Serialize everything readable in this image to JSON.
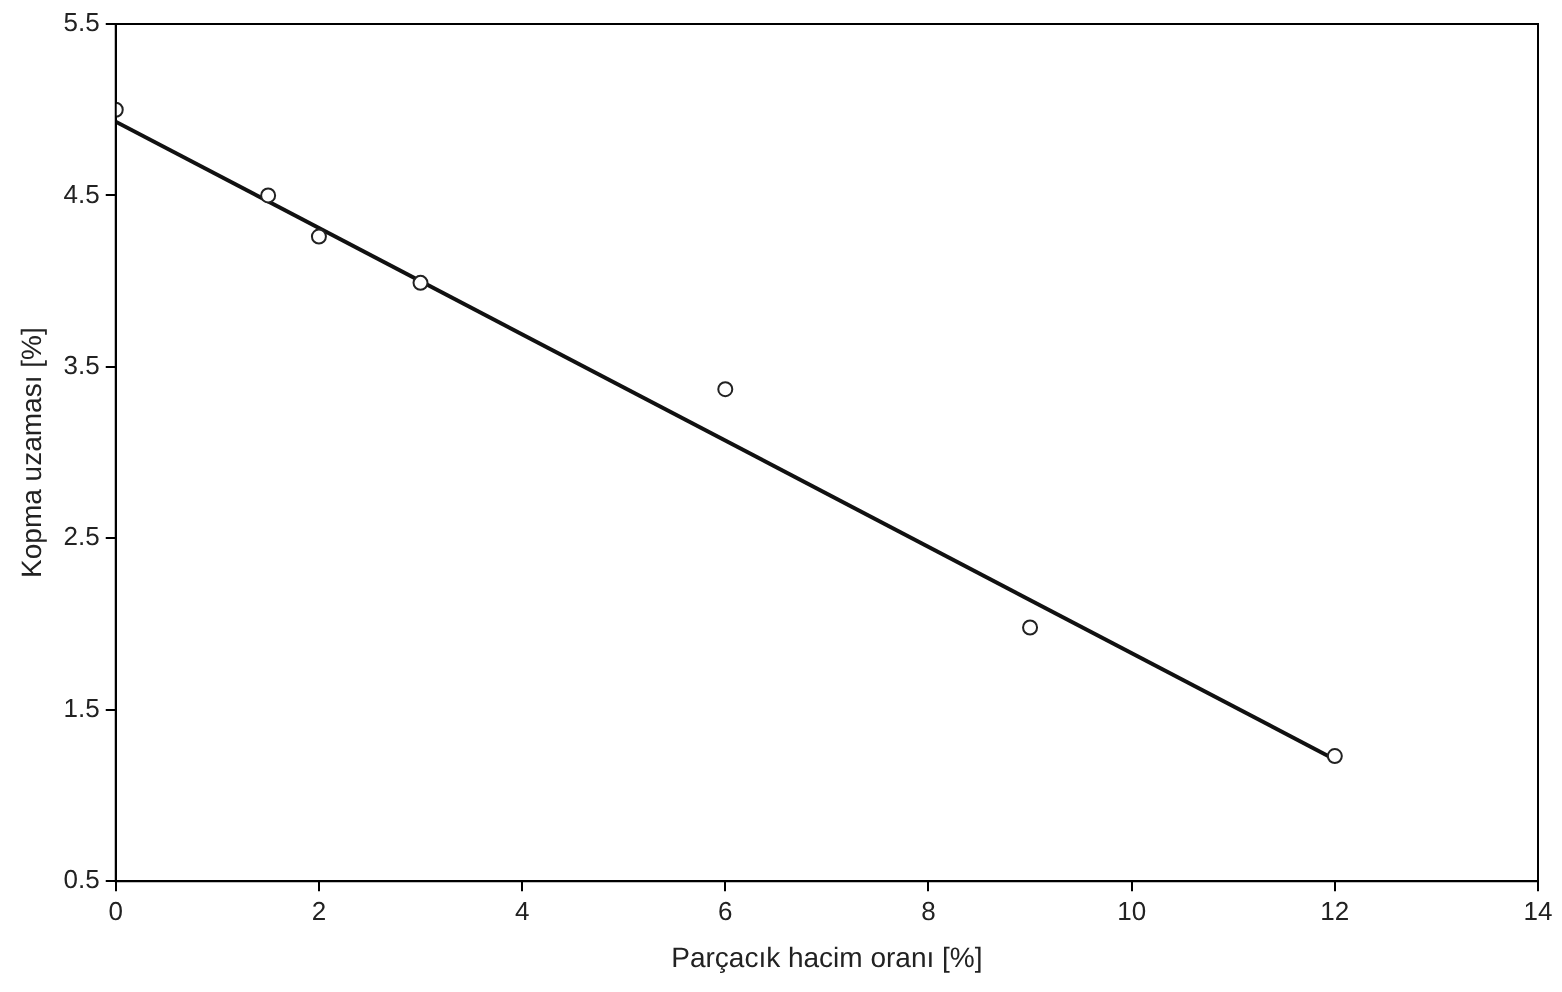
{
  "chart_data": {
    "type": "scatter",
    "xlabel": "Parçacık hacim oranı [%]",
    "ylabel": "Kopma uzaması [%]",
    "xlim": [
      0,
      14
    ],
    "xticks": [
      0,
      2,
      4,
      6,
      8,
      10,
      12,
      14
    ],
    "ylim": [
      0.5,
      5.5
    ],
    "yticks": [
      0.5,
      1.5,
      2.5,
      3.5,
      4.5,
      5.5
    ],
    "grid": false,
    "legend": false,
    "marker": "circle",
    "series": [
      {
        "color": "#222222",
        "x": [
          0,
          1.5,
          2,
          3,
          6,
          9,
          12
        ],
        "values": [
          5.0,
          4.5,
          4.26,
          3.99,
          3.37,
          1.98,
          1.23
        ]
      },
      {
        "type": "line",
        "color": "#111111",
        "x": [
          0,
          12
        ],
        "values": [
          4.93,
          1.21
        ],
        "marker": "none"
      }
    ]
  }
}
